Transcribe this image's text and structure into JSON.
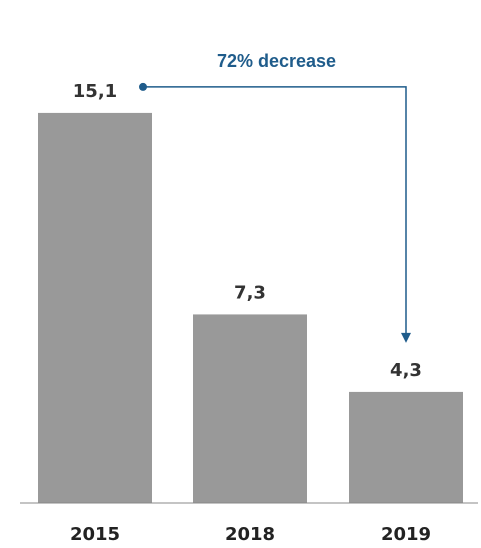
{
  "chart_data": {
    "type": "bar",
    "categories": [
      "2015",
      "2018",
      "2019"
    ],
    "values": [
      15.1,
      7.3,
      4.3
    ],
    "value_labels": [
      "15,1",
      "7,3",
      "4,3"
    ],
    "ylim": [
      0,
      19.2
    ],
    "title": "",
    "xlabel": "",
    "ylabel": "",
    "grid": false,
    "bar_color": "#999999",
    "annotation": {
      "text": "72% decrease",
      "from_category": "2015",
      "to_category": "2019",
      "color": "#1f5c8b"
    }
  }
}
